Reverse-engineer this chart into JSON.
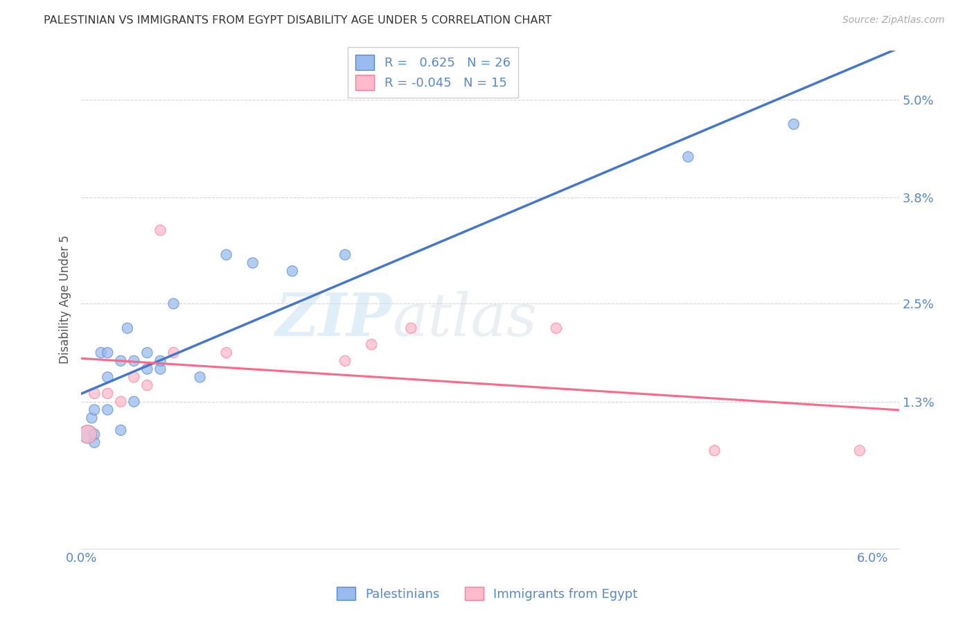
{
  "title": "PALESTINIAN VS IMMIGRANTS FROM EGYPT DISABILITY AGE UNDER 5 CORRELATION CHART",
  "source": "Source: ZipAtlas.com",
  "ylabel": "Disability Age Under 5",
  "xlim": [
    0.0,
    0.062
  ],
  "ylim": [
    -0.005,
    0.056
  ],
  "yticks": [
    0.013,
    0.025,
    0.038,
    0.05
  ],
  "ytick_labels": [
    "1.3%",
    "2.5%",
    "3.8%",
    "5.0%"
  ],
  "xticks": [
    0.0,
    0.01,
    0.02,
    0.03,
    0.04,
    0.05,
    0.06
  ],
  "xtick_labels": [
    "0.0%",
    "",
    "",
    "",
    "",
    "",
    "6.0%"
  ],
  "blue_x": [
    0.0005,
    0.0008,
    0.001,
    0.001,
    0.001,
    0.0015,
    0.002,
    0.002,
    0.002,
    0.003,
    0.003,
    0.0035,
    0.004,
    0.004,
    0.005,
    0.005,
    0.006,
    0.006,
    0.007,
    0.009,
    0.011,
    0.013,
    0.016,
    0.02,
    0.046,
    0.054
  ],
  "blue_y": [
    0.009,
    0.011,
    0.008,
    0.012,
    0.009,
    0.019,
    0.019,
    0.016,
    0.012,
    0.018,
    0.0095,
    0.022,
    0.018,
    0.013,
    0.017,
    0.019,
    0.017,
    0.018,
    0.025,
    0.016,
    0.031,
    0.03,
    0.029,
    0.031,
    0.043,
    0.047
  ],
  "blue_sizes": [
    350,
    120,
    120,
    120,
    120,
    120,
    120,
    120,
    120,
    120,
    120,
    120,
    120,
    120,
    120,
    120,
    120,
    120,
    120,
    120,
    120,
    120,
    120,
    120,
    120,
    120
  ],
  "pink_x": [
    0.0005,
    0.001,
    0.002,
    0.003,
    0.004,
    0.005,
    0.006,
    0.007,
    0.011,
    0.02,
    0.022,
    0.025,
    0.036,
    0.048,
    0.059
  ],
  "pink_y": [
    0.009,
    0.014,
    0.014,
    0.013,
    0.016,
    0.015,
    0.034,
    0.019,
    0.019,
    0.018,
    0.02,
    0.022,
    0.022,
    0.007,
    0.007
  ],
  "pink_sizes": [
    350,
    120,
    120,
    120,
    120,
    120,
    120,
    120,
    120,
    120,
    120,
    120,
    120,
    120,
    120
  ],
  "blue_color": "#99bbee",
  "pink_color": "#ffbbcc",
  "blue_edge_color": "#5588cc",
  "pink_edge_color": "#ff7799",
  "blue_line_color": "#4477cc",
  "pink_line_color": "#ff6688",
  "R_blue": 0.625,
  "N_blue": 26,
  "R_pink": -0.045,
  "N_pink": 15,
  "watermark_text": "ZIP",
  "watermark_text2": "atlas",
  "background_color": "#ffffff",
  "grid_color": "#cccccc",
  "axis_color": "#5588cc",
  "title_color": "#333333",
  "source_color": "#aaaaaa"
}
